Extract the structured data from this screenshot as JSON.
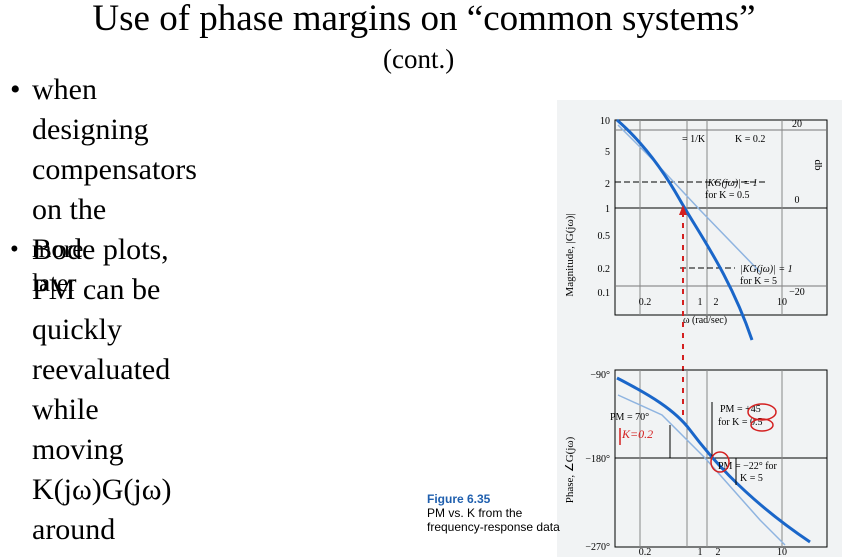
{
  "slide": {
    "title": "Use of phase margins on “common systems”",
    "subtitle": "(cont.)",
    "bullets": [
      {
        "lines": [
          "when designing compensators on the",
          "Bode plots, PM can be quickly",
          "reevaluated while moving K(jω)G(jω)",
          "around"
        ]
      },
      {
        "lines": [
          "more later"
        ]
      }
    ]
  },
  "figure": {
    "caption_number": "Figure 6.35",
    "caption_line1": "PM vs. K from the",
    "caption_line2": "frequency-response data",
    "magnitude_ylabel": "Magnitude, |G(jω)|",
    "phase_ylabel": "Phase, ∠G(jω)",
    "db_label": "db",
    "mag_ticks": [
      "10",
      "5",
      "2",
      "1",
      "0.5",
      "0.2",
      "0.1"
    ],
    "db_ticks": [
      "20",
      "0",
      "−20"
    ],
    "freq_ticks_mid": [
      "0.2",
      "1",
      "2",
      "10"
    ],
    "freq_ticks_bottom": [
      "0.2",
      "1",
      "2",
      "10"
    ],
    "freq_label": "ω (rad/sec)",
    "phase_ticks": [
      "−90°",
      "−180°",
      "−270°"
    ],
    "annot_slope": "= 1/K",
    "annot_k02": "K = 0.2",
    "annot_kg1_a": "|KG(jω)| = 1",
    "annot_kg1_a_for": "for K = 0.5",
    "annot_kg1_b": "|KG(jω)| = 1",
    "annot_kg1_b_for": "for K = 5",
    "pm70": "PM = 70°",
    "pm45": "PM = +45",
    "pm45_for": "for K = 0.5",
    "pm_neg22": "PM = −22° for",
    "pm_neg22_for": "K = 5",
    "handwritten": "K=0.2"
  },
  "colors": {
    "curve": "#1a66c9",
    "asymptote": "#8fb4e0",
    "annotation_red": "#d42020",
    "panel_bg": "#f1f3f4"
  }
}
